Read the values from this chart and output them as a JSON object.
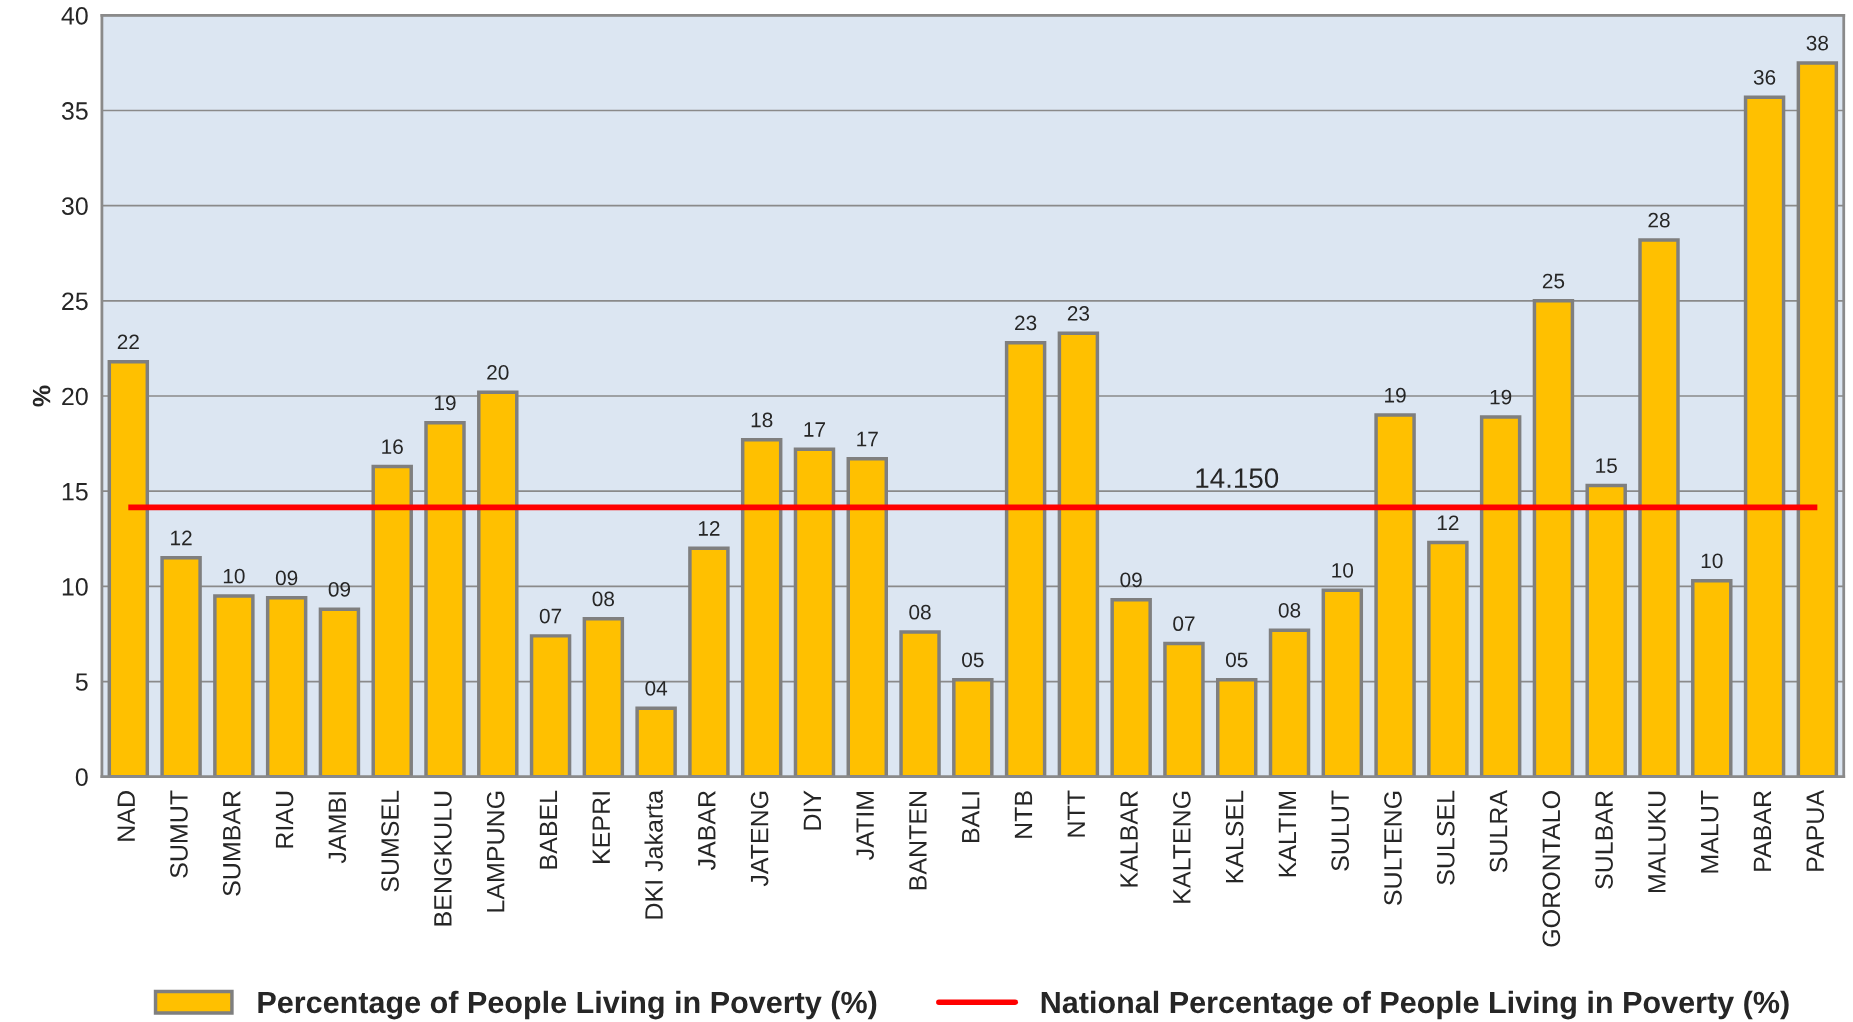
{
  "chart_data": {
    "type": "bar",
    "ylabel": "%",
    "categories": [
      "NAD",
      "SUMUT",
      "SUMBAR",
      "RIAU",
      "JAMBI",
      "SUMSEL",
      "BENGKULU",
      "LAMPUNG",
      "BABEL",
      "KEPRI",
      "DKI Jakarta",
      "JABAR",
      "JATENG",
      "DIY",
      "JATIM",
      "BANTEN",
      "BALI",
      "NTB",
      "NTT",
      "KALBAR",
      "KALTENG",
      "KALSEL",
      "KALTIM",
      "SULUT",
      "SULTENG",
      "SULSEL",
      "SULRA",
      "GORONTALO",
      "SULBAR",
      "MALUKU",
      "MALUT",
      "PABAR",
      "PAPUA"
    ],
    "series": [
      {
        "name": "Percentage of People Living in Poverty (%)",
        "color": "#ffc000",
        "values": [
          21.8,
          11.5,
          9.5,
          9.4,
          8.8,
          16.3,
          18.6,
          20.2,
          7.4,
          8.3,
          3.6,
          12.0,
          17.7,
          17.2,
          16.7,
          7.6,
          5.1,
          22.8,
          23.3,
          9.3,
          7.0,
          5.1,
          7.7,
          9.8,
          19.0,
          12.3,
          18.9,
          25.0,
          15.3,
          28.2,
          10.3,
          35.7,
          37.5
        ],
        "value_labels": [
          "22",
          "12",
          "10",
          "09",
          "09",
          "16",
          "19",
          "20",
          "07",
          "08",
          "04",
          "12",
          "18",
          "17",
          "17",
          "08",
          "05",
          "23",
          "23",
          "09",
          "07",
          "05",
          "08",
          "10",
          "19",
          "12",
          "19",
          "25",
          "15",
          "28",
          "10",
          "36",
          "38"
        ]
      }
    ],
    "ref_lines": [
      {
        "axis": "y",
        "value": 14.15,
        "label": "National Percentage of People Living in Poverty (%)",
        "color": "#ff0000",
        "line_style": "solid"
      }
    ],
    "annotations": [
      {
        "text": "14.150",
        "x": "KALSEL",
        "y": 14.15
      }
    ],
    "ylim": [
      0,
      40
    ],
    "yticks": [
      0,
      5,
      10,
      15,
      20,
      25,
      30,
      35,
      40
    ],
    "grid": "y",
    "legend": "bottom"
  }
}
